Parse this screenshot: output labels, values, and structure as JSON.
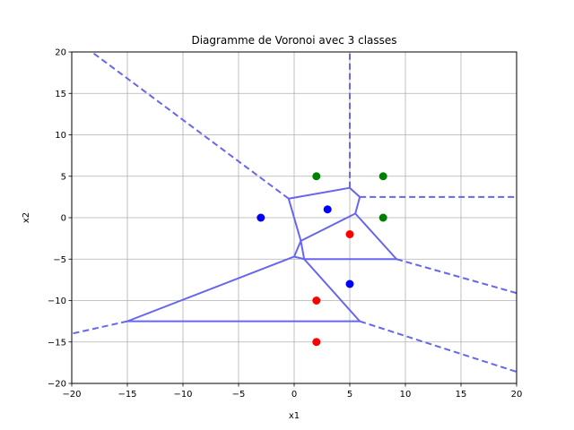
{
  "chart_data": {
    "type": "scatter",
    "title": "Diagramme de Voronoi avec 3 classes",
    "xlabel": "x1",
    "ylabel": "x2",
    "xlim": [
      -20,
      20
    ],
    "ylim": [
      -20,
      20
    ],
    "xticks": [
      -20,
      -15,
      -10,
      -5,
      0,
      5,
      10,
      15,
      20
    ],
    "yticks": [
      -20,
      -15,
      -10,
      -5,
      0,
      5,
      10,
      15,
      20
    ],
    "grid": true,
    "series": [
      {
        "color": "#0000ff",
        "points": [
          [
            -3,
            0
          ],
          [
            3,
            1
          ],
          [
            5,
            -8
          ]
        ]
      },
      {
        "color": "#ff0000",
        "points": [
          [
            5,
            -2
          ],
          [
            2,
            -10
          ],
          [
            2,
            -15
          ]
        ]
      },
      {
        "color": "#008000",
        "points": [
          [
            2,
            5
          ],
          [
            8,
            5
          ],
          [
            8,
            0
          ]
        ]
      }
    ],
    "voronoi": {
      "color": "#6666ee",
      "vertices": [
        [
          -0.5,
          2.3
        ],
        [
          5.0,
          3.6
        ],
        [
          5.9,
          2.5
        ],
        [
          5.5,
          0.5
        ],
        [
          0.6,
          -2.8
        ],
        [
          9.2,
          -5.0
        ],
        [
          0.9,
          -5.0
        ],
        [
          0.0,
          -4.7
        ],
        [
          -15.0,
          -12.5
        ],
        [
          5.9,
          -12.5
        ]
      ],
      "ridges": [
        [
          0,
          1
        ],
        [
          1,
          2
        ],
        [
          2,
          3
        ],
        [
          3,
          4
        ],
        [
          4,
          0
        ],
        [
          3,
          5
        ],
        [
          5,
          6
        ],
        [
          6,
          4
        ],
        [
          6,
          7
        ],
        [
          7,
          4
        ],
        [
          7,
          8
        ],
        [
          8,
          9
        ],
        [
          9,
          6
        ]
      ],
      "rays": [
        {
          "from": 0,
          "to": [
            -18.2,
            20
          ]
        },
        {
          "from": 1,
          "to": [
            5.0,
            20
          ]
        },
        {
          "from": 2,
          "to": [
            20,
            2.5
          ]
        },
        {
          "from": 5,
          "to": [
            20,
            -9.1
          ]
        },
        {
          "from": 8,
          "to": [
            -20,
            -14.0
          ]
        },
        {
          "from": 9,
          "to": [
            20,
            -18.6
          ]
        }
      ]
    }
  }
}
